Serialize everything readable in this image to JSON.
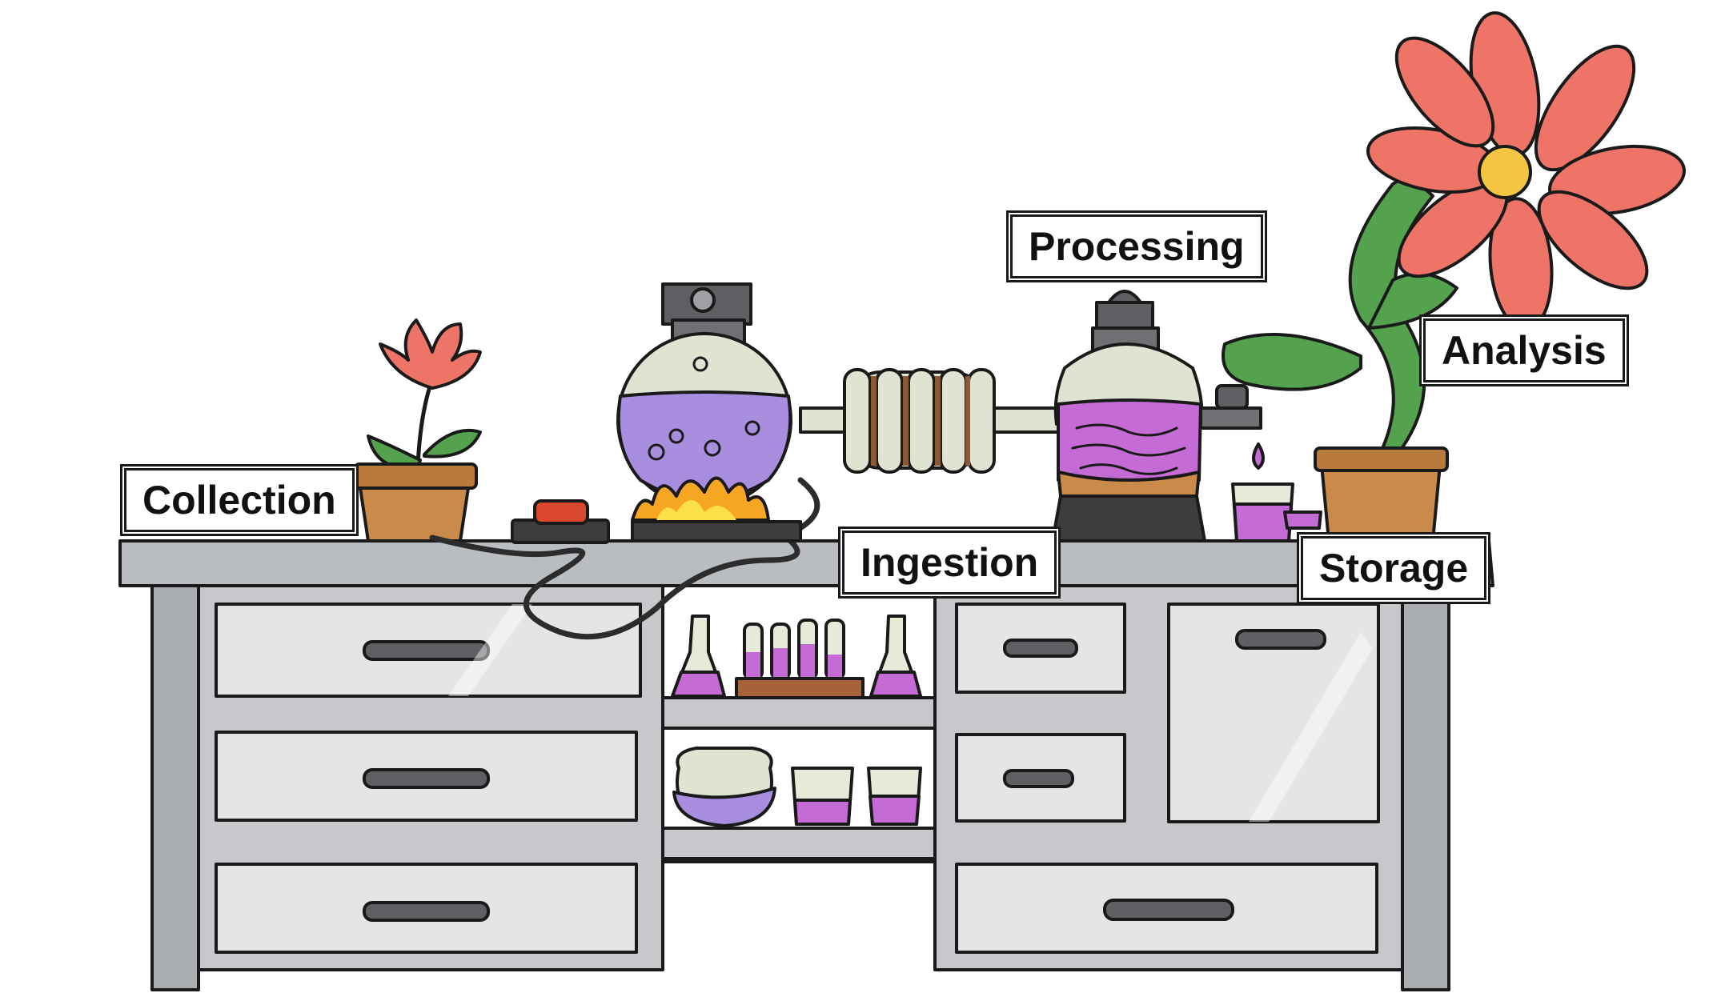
{
  "labels": {
    "collection": "Collection",
    "ingestion": "Ingestion",
    "processing": "Processing",
    "storage": "Storage",
    "analysis": "Analysis"
  },
  "colors": {
    "outline": "#1a1a1a",
    "steel": "#b9bcc1",
    "steel_light": "#dcdee1",
    "purple_liquid": "#a98ee0",
    "magenta_liquid": "#c46bd6",
    "glass": "#d9e0cc",
    "flame": "#f6a623",
    "flower_red": "#ee7468",
    "leaf_green": "#55a24e",
    "pot_brown": "#c98a4a"
  },
  "icons": [
    "small-flower-pot-icon",
    "red-button-icon",
    "round-flask-icon",
    "flame-icon",
    "condenser-coil-icon",
    "processing-flask-icon",
    "spout-icon",
    "beaker-icon",
    "large-flower-icon",
    "test-tube-rack-icon",
    "conical-flask-icon",
    "lab-cabinet-icon"
  ]
}
